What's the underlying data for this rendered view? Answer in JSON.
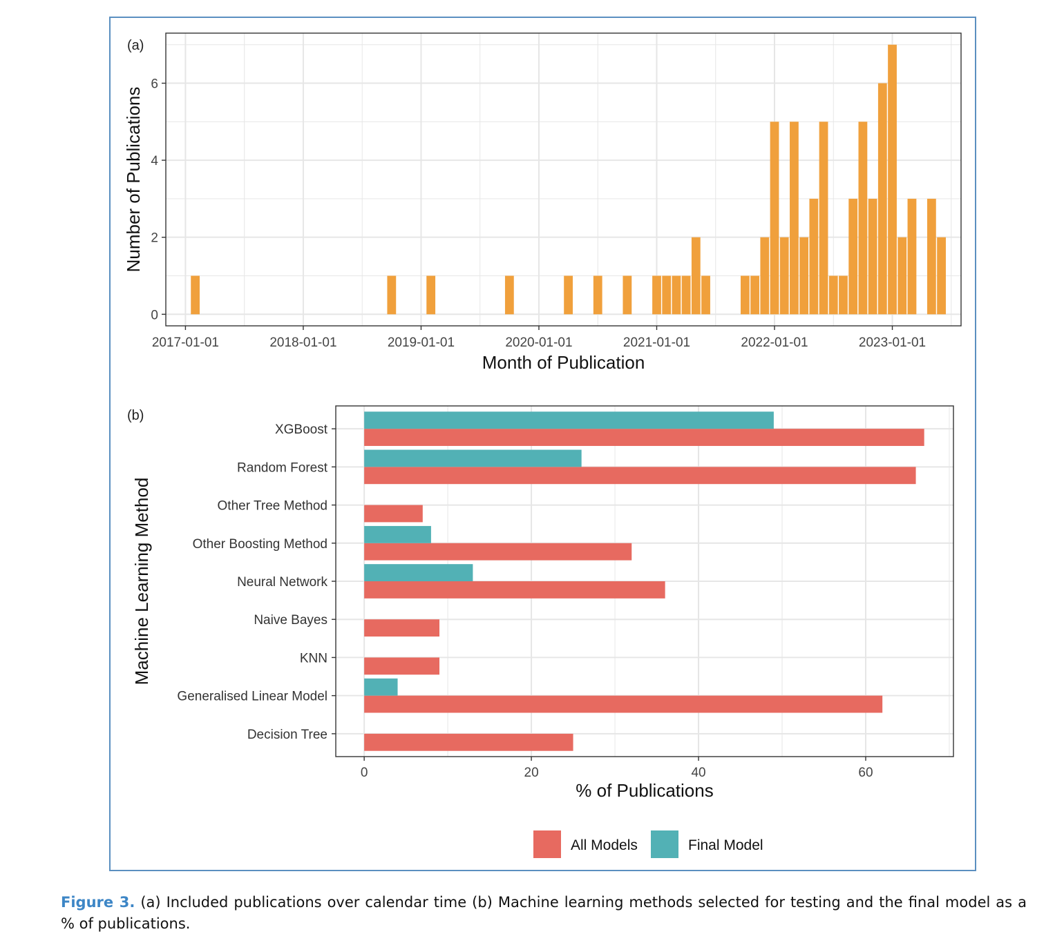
{
  "caption": {
    "label": "Figure 3.",
    "text": " (a) Included publications over calendar time (b) Machine learning methods selected for testing and the final model as a % of publications."
  },
  "colors": {
    "bar_a": "#f0a03c",
    "all_models": "#e76a60",
    "final_model": "#52b1b5",
    "grid": "#e6e6e6",
    "frame": "#5a8fc0",
    "caption_label": "#3d86c6"
  },
  "chart_data": [
    {
      "panel_label": "(a)",
      "type": "bar",
      "xlabel": "Month of Publication",
      "ylabel": "Number of Publications",
      "x_ticks": [
        "2017-01-01",
        "2018-01-01",
        "2019-01-01",
        "2020-01-01",
        "2021-01-01",
        "2022-01-01",
        "2023-01-01"
      ],
      "y_ticks": [
        0,
        2,
        4,
        6
      ],
      "xlim": [
        "2016-11-01",
        "2023-08-01"
      ],
      "ylim": [
        -0.3,
        7.3
      ],
      "grid": true,
      "x": [
        "2017-02",
        "2018-10",
        "2019-02",
        "2019-10",
        "2020-04",
        "2020-07",
        "2020-10",
        "2021-01",
        "2021-02",
        "2021-03",
        "2021-04",
        "2021-05",
        "2021-06",
        "2021-10",
        "2021-11",
        "2021-12",
        "2022-01",
        "2022-02",
        "2022-03",
        "2022-04",
        "2022-05",
        "2022-06",
        "2022-07",
        "2022-08",
        "2022-09",
        "2022-10",
        "2022-11",
        "2022-12",
        "2023-01",
        "2023-02",
        "2023-03",
        "2023-04",
        "2023-05",
        "2023-06"
      ],
      "values": [
        1,
        1,
        1,
        1,
        1,
        1,
        1,
        1,
        1,
        1,
        1,
        2,
        1,
        1,
        1,
        2,
        5,
        2,
        5,
        2,
        3,
        5,
        1,
        1,
        3,
        5,
        3,
        6,
        7,
        2,
        3,
        0,
        3,
        2
      ]
    },
    {
      "panel_label": "(b)",
      "type": "bar",
      "orientation": "horizontal",
      "xlabel": "% of Publications",
      "ylabel": "Machine Learning Method",
      "categories": [
        "XGBoost",
        "Random Forest",
        "Other Tree Method",
        "Other Boosting Method",
        "Neural Network",
        "Naive Bayes",
        "KNN",
        "Generalised Linear Model",
        "Decision Tree"
      ],
      "x_ticks": [
        0,
        20,
        40,
        60
      ],
      "xlim": [
        -3.4,
        70.5
      ],
      "grid": true,
      "legend_position": "bottom",
      "series": [
        {
          "name": "All Models",
          "values": [
            67,
            66,
            7,
            32,
            36,
            9,
            9,
            62,
            25
          ]
        },
        {
          "name": "Final Model",
          "values": [
            49,
            26,
            0,
            8,
            13,
            0,
            0,
            4,
            0
          ]
        }
      ]
    }
  ]
}
